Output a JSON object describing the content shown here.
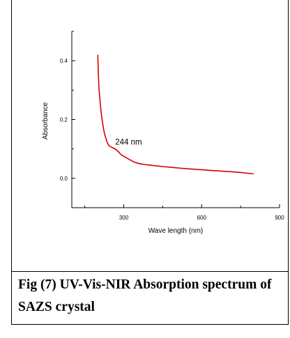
{
  "chart_data": {
    "type": "line",
    "title": "",
    "xlabel": "Wave length (nm)",
    "ylabel": "Absorbance",
    "xlim": [
      100,
      900
    ],
    "ylim": [
      -0.1,
      0.5
    ],
    "xticks": [
      300,
      600,
      900
    ],
    "yticks": [
      0.0,
      0.2,
      0.4
    ],
    "xtick_labels": [
      "300",
      "600",
      "900"
    ],
    "ytick_labels": [
      "0.0",
      "0.2",
      "0.4"
    ],
    "grid": false,
    "series": [
      {
        "color": "#d40000",
        "x": [
          200,
          202,
          205,
          210,
          215,
          220,
          225,
          230,
          235,
          240,
          244,
          250,
          260,
          270,
          280,
          290,
          300,
          320,
          340,
          360,
          380,
          400,
          450,
          500,
          550,
          600,
          650,
          700,
          750,
          800
        ],
        "y": [
          0.42,
          0.36,
          0.3,
          0.25,
          0.21,
          0.18,
          0.155,
          0.14,
          0.125,
          0.115,
          0.11,
          0.107,
          0.103,
          0.098,
          0.09,
          0.08,
          0.075,
          0.065,
          0.055,
          0.05,
          0.047,
          0.045,
          0.04,
          0.036,
          0.032,
          0.029,
          0.026,
          0.023,
          0.02,
          0.015
        ]
      }
    ],
    "annotations": [
      {
        "text": "244 nm",
        "x": 267,
        "y": 0.115
      }
    ]
  },
  "caption": "Fig (7) UV-Vis-NIR Absorption spectrum of SAZS crystal"
}
